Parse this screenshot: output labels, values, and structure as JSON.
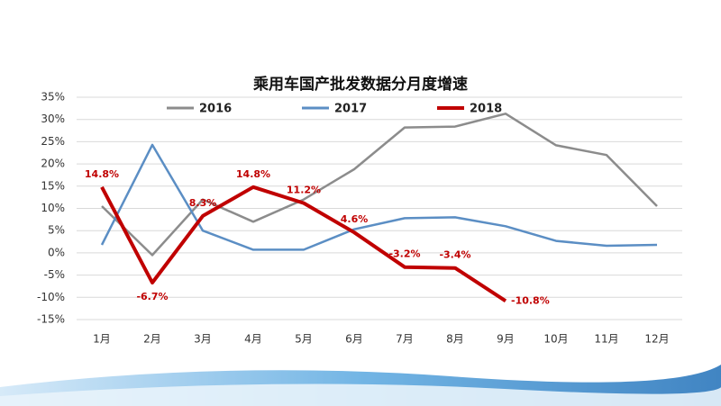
{
  "chart_data": {
    "type": "line",
    "title": "乘用车国产批发数据分月度增速",
    "categories": [
      "1月",
      "2月",
      "3月",
      "4月",
      "5月",
      "6月",
      "7月",
      "8月",
      "9月",
      "10月",
      "11月",
      "12月"
    ],
    "series": [
      {
        "name": "2016",
        "color": "#8c8c8c",
        "values": [
          10.5,
          -0.5,
          12,
          7,
          12,
          18.8,
          28.2,
          28.4,
          31.3,
          24.2,
          22,
          10.5
        ]
      },
      {
        "name": "2017",
        "color": "#5b8ec4",
        "values": [
          1.8,
          24.3,
          5,
          0.7,
          0.7,
          5.3,
          7.8,
          8,
          6,
          2.7,
          1.6,
          1.8
        ]
      },
      {
        "name": "2018",
        "color": "#c00000",
        "values": [
          14.8,
          -6.7,
          8.3,
          14.8,
          11.2,
          4.6,
          -3.2,
          -3.4,
          -10.8,
          null,
          null,
          null
        ],
        "value_labels": [
          "14.8%",
          "-6.7%",
          "8.3%",
          "14.8%",
          "11.2%",
          "4.6%",
          "-3.2%",
          "-3.4%",
          "-10.8%",
          null,
          null,
          null
        ]
      }
    ],
    "ylim": [
      -15,
      35
    ],
    "yticks": [
      {
        "value": -15,
        "label": "-15%"
      },
      {
        "value": -10,
        "label": "-10%"
      },
      {
        "value": -5,
        "label": "-5%"
      },
      {
        "value": 0,
        "label": "0%"
      },
      {
        "value": 5,
        "label": "5%"
      },
      {
        "value": 10,
        "label": "10%"
      },
      {
        "value": 15,
        "label": "15%"
      },
      {
        "value": 20,
        "label": "20%"
      },
      {
        "value": 25,
        "label": "25%"
      },
      {
        "value": 30,
        "label": "30%"
      },
      {
        "value": 35,
        "label": "35%"
      }
    ],
    "grid": true
  }
}
